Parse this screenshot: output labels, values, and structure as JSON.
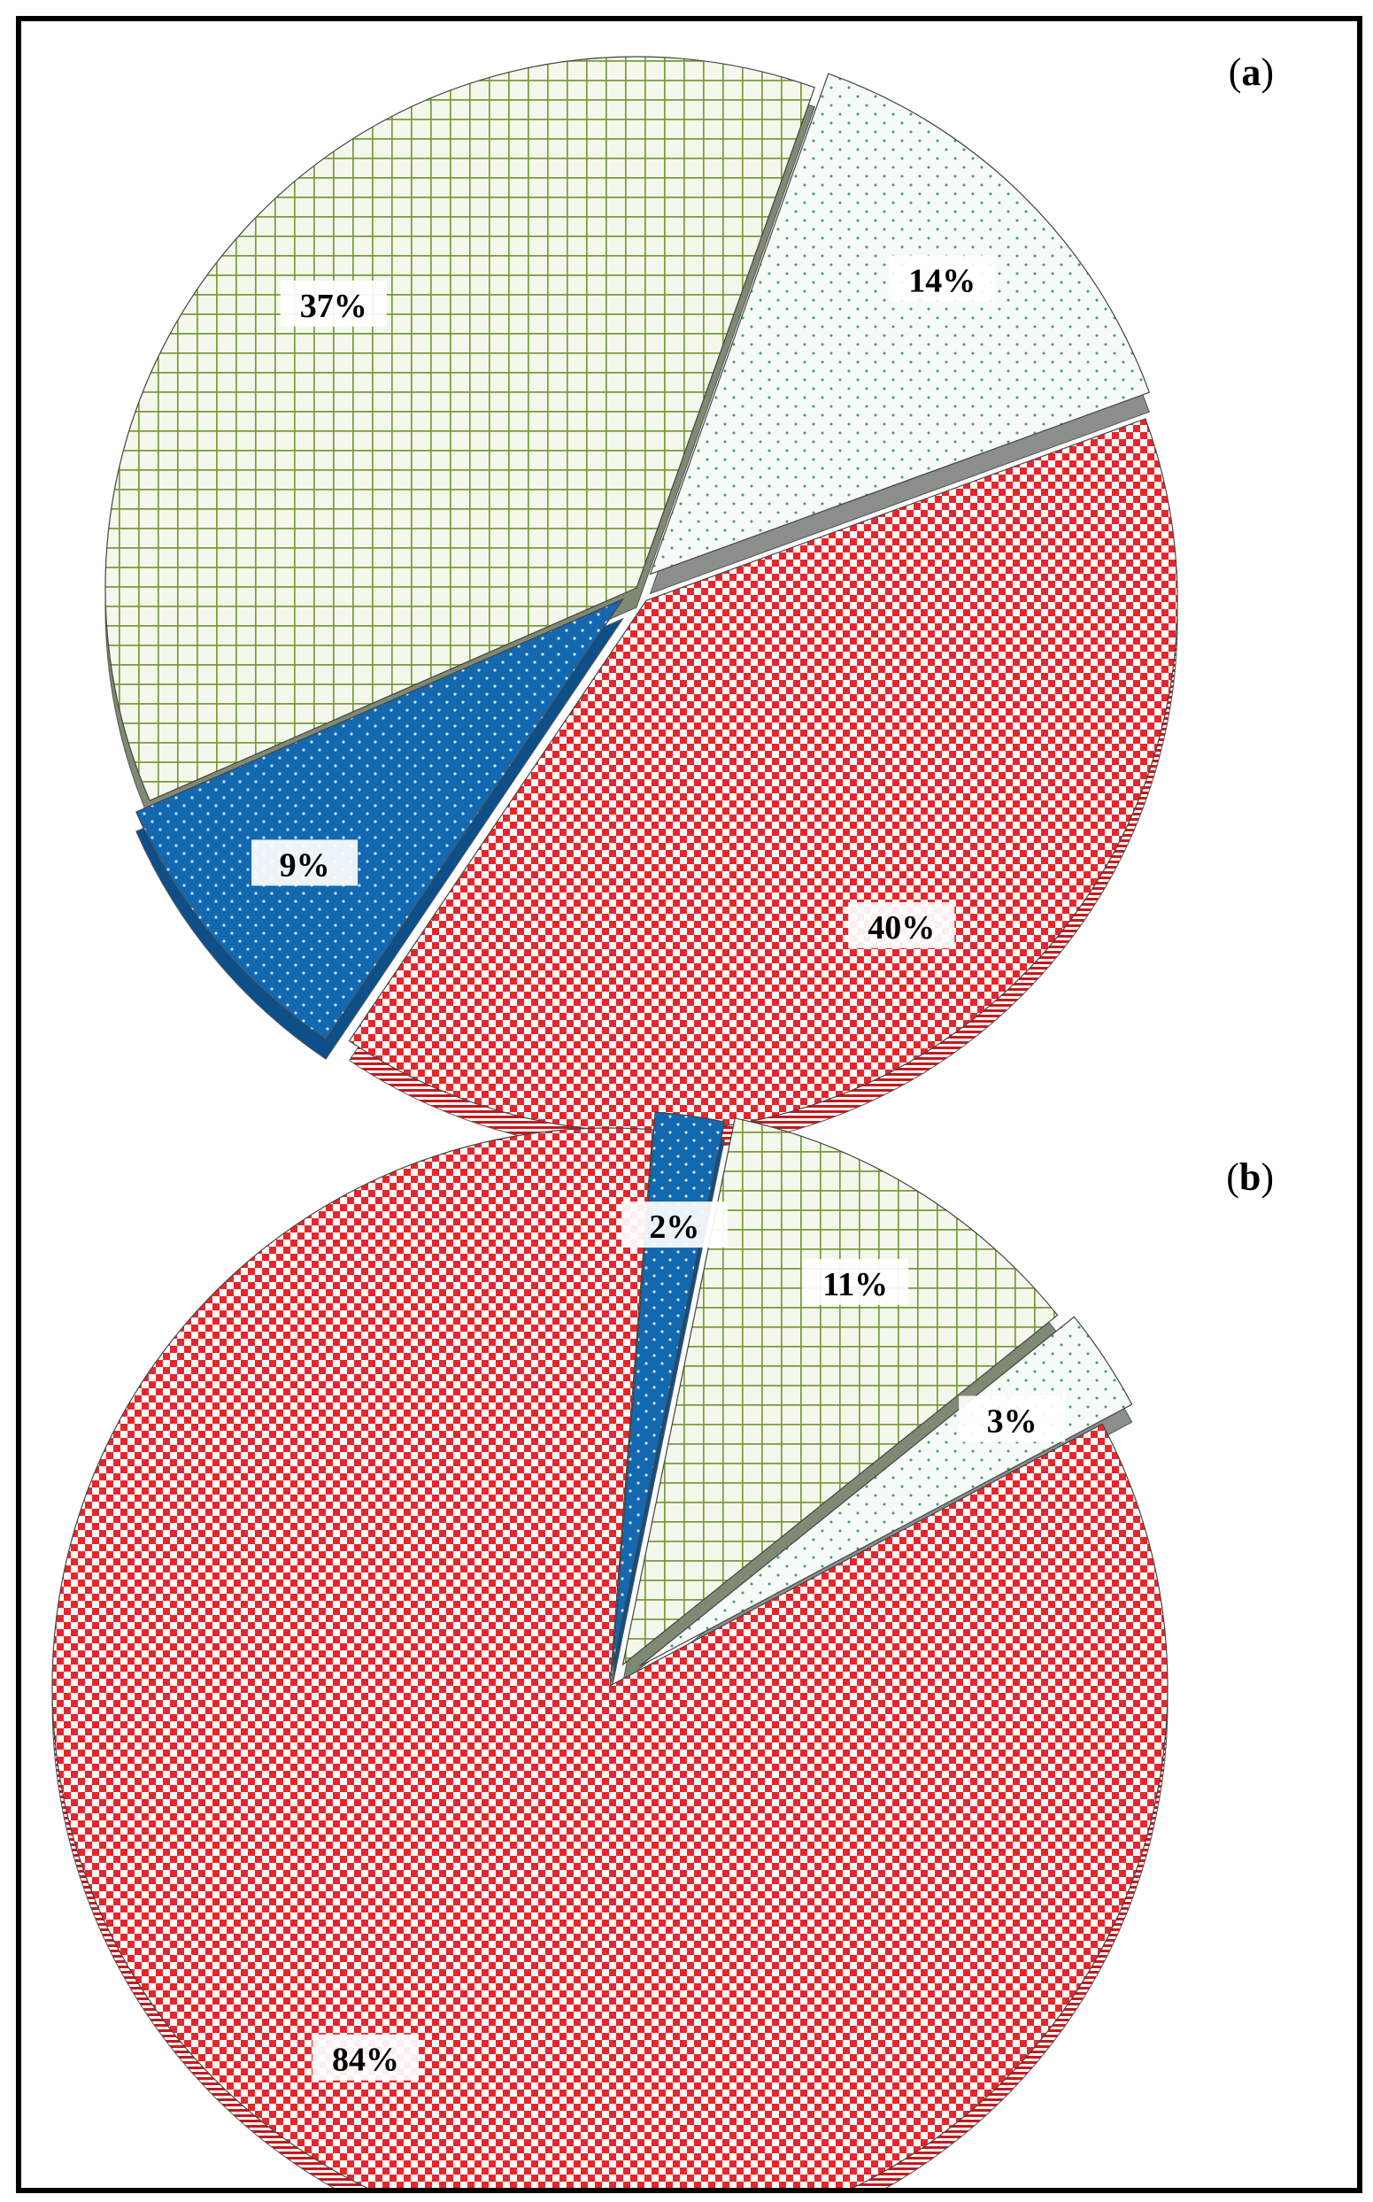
{
  "colors": {
    "red": "#e8262a",
    "blue": "#1368b0",
    "green_line": "#7a9a3a",
    "green_fill": "#f4f8ec",
    "white_dot": "#f4faf7",
    "dot_green": "#3f9d6e"
  },
  "chart_data": [
    {
      "type": "pie",
      "panel_label": "a",
      "slices": [
        {
          "label": "40%",
          "value": 40,
          "pattern": "red-checker"
        },
        {
          "label": "9%",
          "value": 9,
          "pattern": "blue-dots"
        },
        {
          "label": "37%",
          "value": 37,
          "pattern": "green-grid"
        },
        {
          "label": "14%",
          "value": 14,
          "pattern": "white-dots"
        }
      ]
    },
    {
      "type": "pie",
      "panel_label": "b",
      "slices": [
        {
          "label": "84%",
          "value": 84,
          "pattern": "red-checker"
        },
        {
          "label": "2%",
          "value": 2,
          "pattern": "blue-dots"
        },
        {
          "label": "11%",
          "value": 11,
          "pattern": "green-grid"
        },
        {
          "label": "3%",
          "value": 3,
          "pattern": "white-dots"
        }
      ]
    }
  ]
}
